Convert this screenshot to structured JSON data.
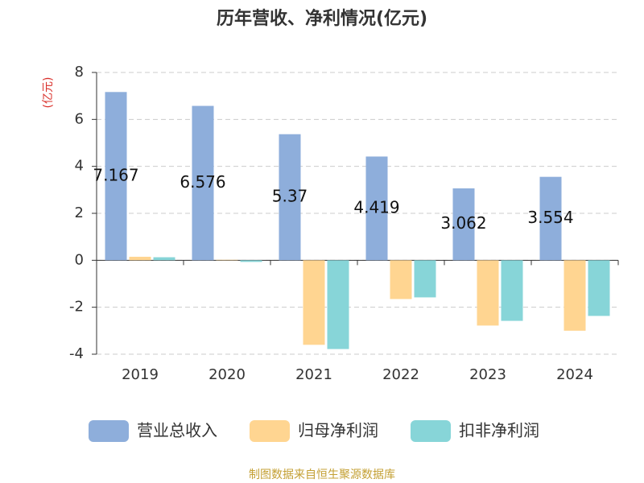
{
  "chart_data": {
    "type": "bar",
    "title": "历年营收、净利情况(亿元)",
    "y_label": "(亿元)",
    "categories": [
      "2019",
      "2020",
      "2021",
      "2022",
      "2023",
      "2024"
    ],
    "series": [
      {
        "name": "营业总收入",
        "color": "#8eaedb",
        "values": [
          7.167,
          6.576,
          5.37,
          4.419,
          3.062,
          3.554
        ],
        "show_labels": true
      },
      {
        "name": "归母净利润",
        "color": "#ffd591",
        "values": [
          0.15,
          0.02,
          -3.6,
          -1.65,
          -2.78,
          -3.0
        ],
        "show_labels": false
      },
      {
        "name": "扣非净利润",
        "color": "#87d5d8",
        "values": [
          0.13,
          -0.07,
          -3.78,
          -1.58,
          -2.58,
          -2.37
        ],
        "show_labels": false
      }
    ],
    "ylim": [
      -4,
      8
    ],
    "yticks": [
      -4,
      -2,
      0,
      2,
      4,
      6,
      8
    ],
    "grid": true,
    "source": "制图数据来自恒生聚源数据库"
  }
}
